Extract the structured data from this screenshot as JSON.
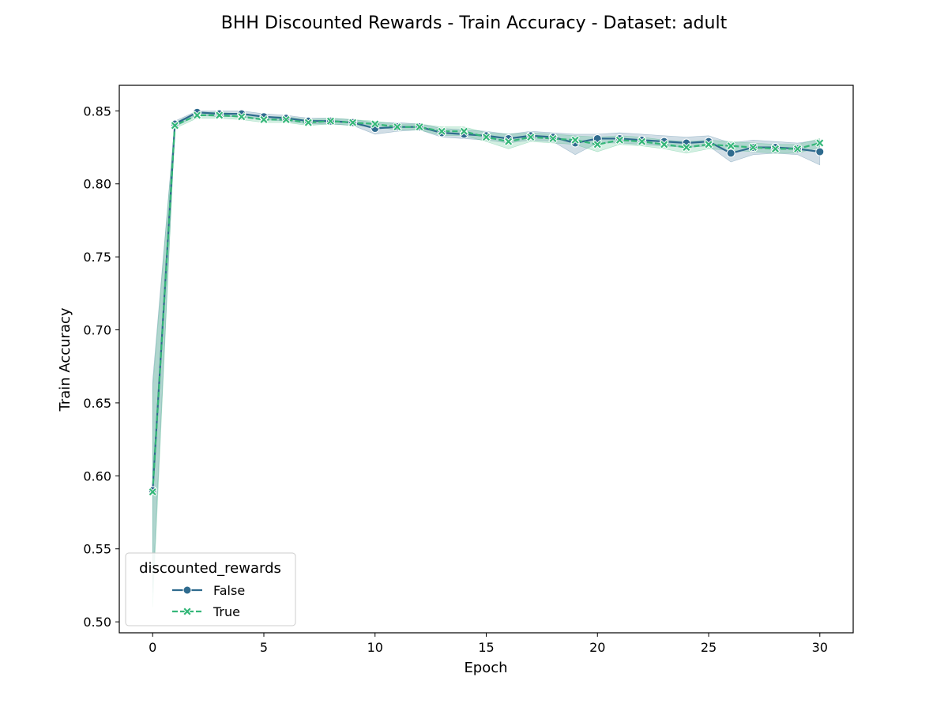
{
  "chart_data": {
    "type": "line",
    "title": "BHH Discounted Rewards - Train Accuracy - Dataset: adult",
    "xlabel": "Epoch",
    "ylabel": "Train Accuracy",
    "xlim": [
      -1.5,
      31.5
    ],
    "ylim": [
      0.4925,
      0.8675
    ],
    "xticks": [
      0,
      5,
      10,
      15,
      20,
      25,
      30
    ],
    "xtick_labels": [
      "0",
      "5",
      "10",
      "15",
      "20",
      "25",
      "30"
    ],
    "yticks": [
      0.5,
      0.55,
      0.6,
      0.65,
      0.7,
      0.75,
      0.8,
      0.85
    ],
    "ytick_labels": [
      "0.50",
      "0.55",
      "0.60",
      "0.65",
      "0.70",
      "0.75",
      "0.80",
      "0.85"
    ],
    "grid": false,
    "legend": {
      "title": "discounted_rewards",
      "placement": "lower-left"
    },
    "x": [
      0,
      1,
      2,
      3,
      4,
      5,
      6,
      7,
      8,
      9,
      10,
      11,
      12,
      13,
      14,
      15,
      16,
      17,
      18,
      19,
      20,
      21,
      22,
      23,
      24,
      25,
      26,
      27,
      28,
      29,
      30
    ],
    "series": [
      {
        "name": "False",
        "color": "#2f6b8e",
        "marker": "circle",
        "line_style": "solid",
        "values": [
          0.59,
          0.841,
          0.849,
          0.848,
          0.848,
          0.846,
          0.845,
          0.843,
          0.843,
          0.842,
          0.838,
          0.839,
          0.839,
          0.835,
          0.834,
          0.833,
          0.831,
          0.833,
          0.832,
          0.828,
          0.831,
          0.831,
          0.83,
          0.829,
          0.828,
          0.829,
          0.821,
          0.825,
          0.825,
          0.824,
          0.822
        ],
        "lower": [
          0.52,
          0.839,
          0.847,
          0.846,
          0.846,
          0.844,
          0.843,
          0.841,
          0.841,
          0.84,
          0.834,
          0.836,
          0.837,
          0.832,
          0.831,
          0.83,
          0.828,
          0.83,
          0.829,
          0.82,
          0.828,
          0.828,
          0.827,
          0.826,
          0.825,
          0.826,
          0.815,
          0.82,
          0.821,
          0.82,
          0.813
        ],
        "upper": [
          0.665,
          0.843,
          0.85,
          0.85,
          0.85,
          0.848,
          0.847,
          0.845,
          0.845,
          0.844,
          0.842,
          0.842,
          0.841,
          0.838,
          0.837,
          0.836,
          0.834,
          0.836,
          0.835,
          0.834,
          0.834,
          0.835,
          0.834,
          0.833,
          0.832,
          0.833,
          0.828,
          0.83,
          0.829,
          0.828,
          0.83
        ]
      },
      {
        "name": "True",
        "color": "#35b779",
        "marker": "x",
        "line_style": "dashed",
        "values": [
          0.589,
          0.84,
          0.847,
          0.847,
          0.846,
          0.844,
          0.844,
          0.842,
          0.843,
          0.842,
          0.841,
          0.839,
          0.839,
          0.836,
          0.836,
          0.832,
          0.829,
          0.832,
          0.831,
          0.83,
          0.827,
          0.83,
          0.829,
          0.827,
          0.825,
          0.827,
          0.826,
          0.825,
          0.824,
          0.824,
          0.828
        ],
        "lower": [
          0.51,
          0.838,
          0.845,
          0.845,
          0.844,
          0.842,
          0.842,
          0.84,
          0.841,
          0.84,
          0.839,
          0.837,
          0.837,
          0.833,
          0.833,
          0.829,
          0.824,
          0.829,
          0.828,
          0.827,
          0.822,
          0.827,
          0.826,
          0.824,
          0.821,
          0.824,
          0.823,
          0.822,
          0.821,
          0.821,
          0.825
        ],
        "upper": [
          0.66,
          0.842,
          0.849,
          0.849,
          0.848,
          0.846,
          0.846,
          0.844,
          0.845,
          0.844,
          0.843,
          0.841,
          0.841,
          0.839,
          0.839,
          0.835,
          0.834,
          0.835,
          0.834,
          0.833,
          0.832,
          0.833,
          0.832,
          0.83,
          0.829,
          0.83,
          0.829,
          0.828,
          0.827,
          0.827,
          0.831
        ]
      }
    ]
  }
}
